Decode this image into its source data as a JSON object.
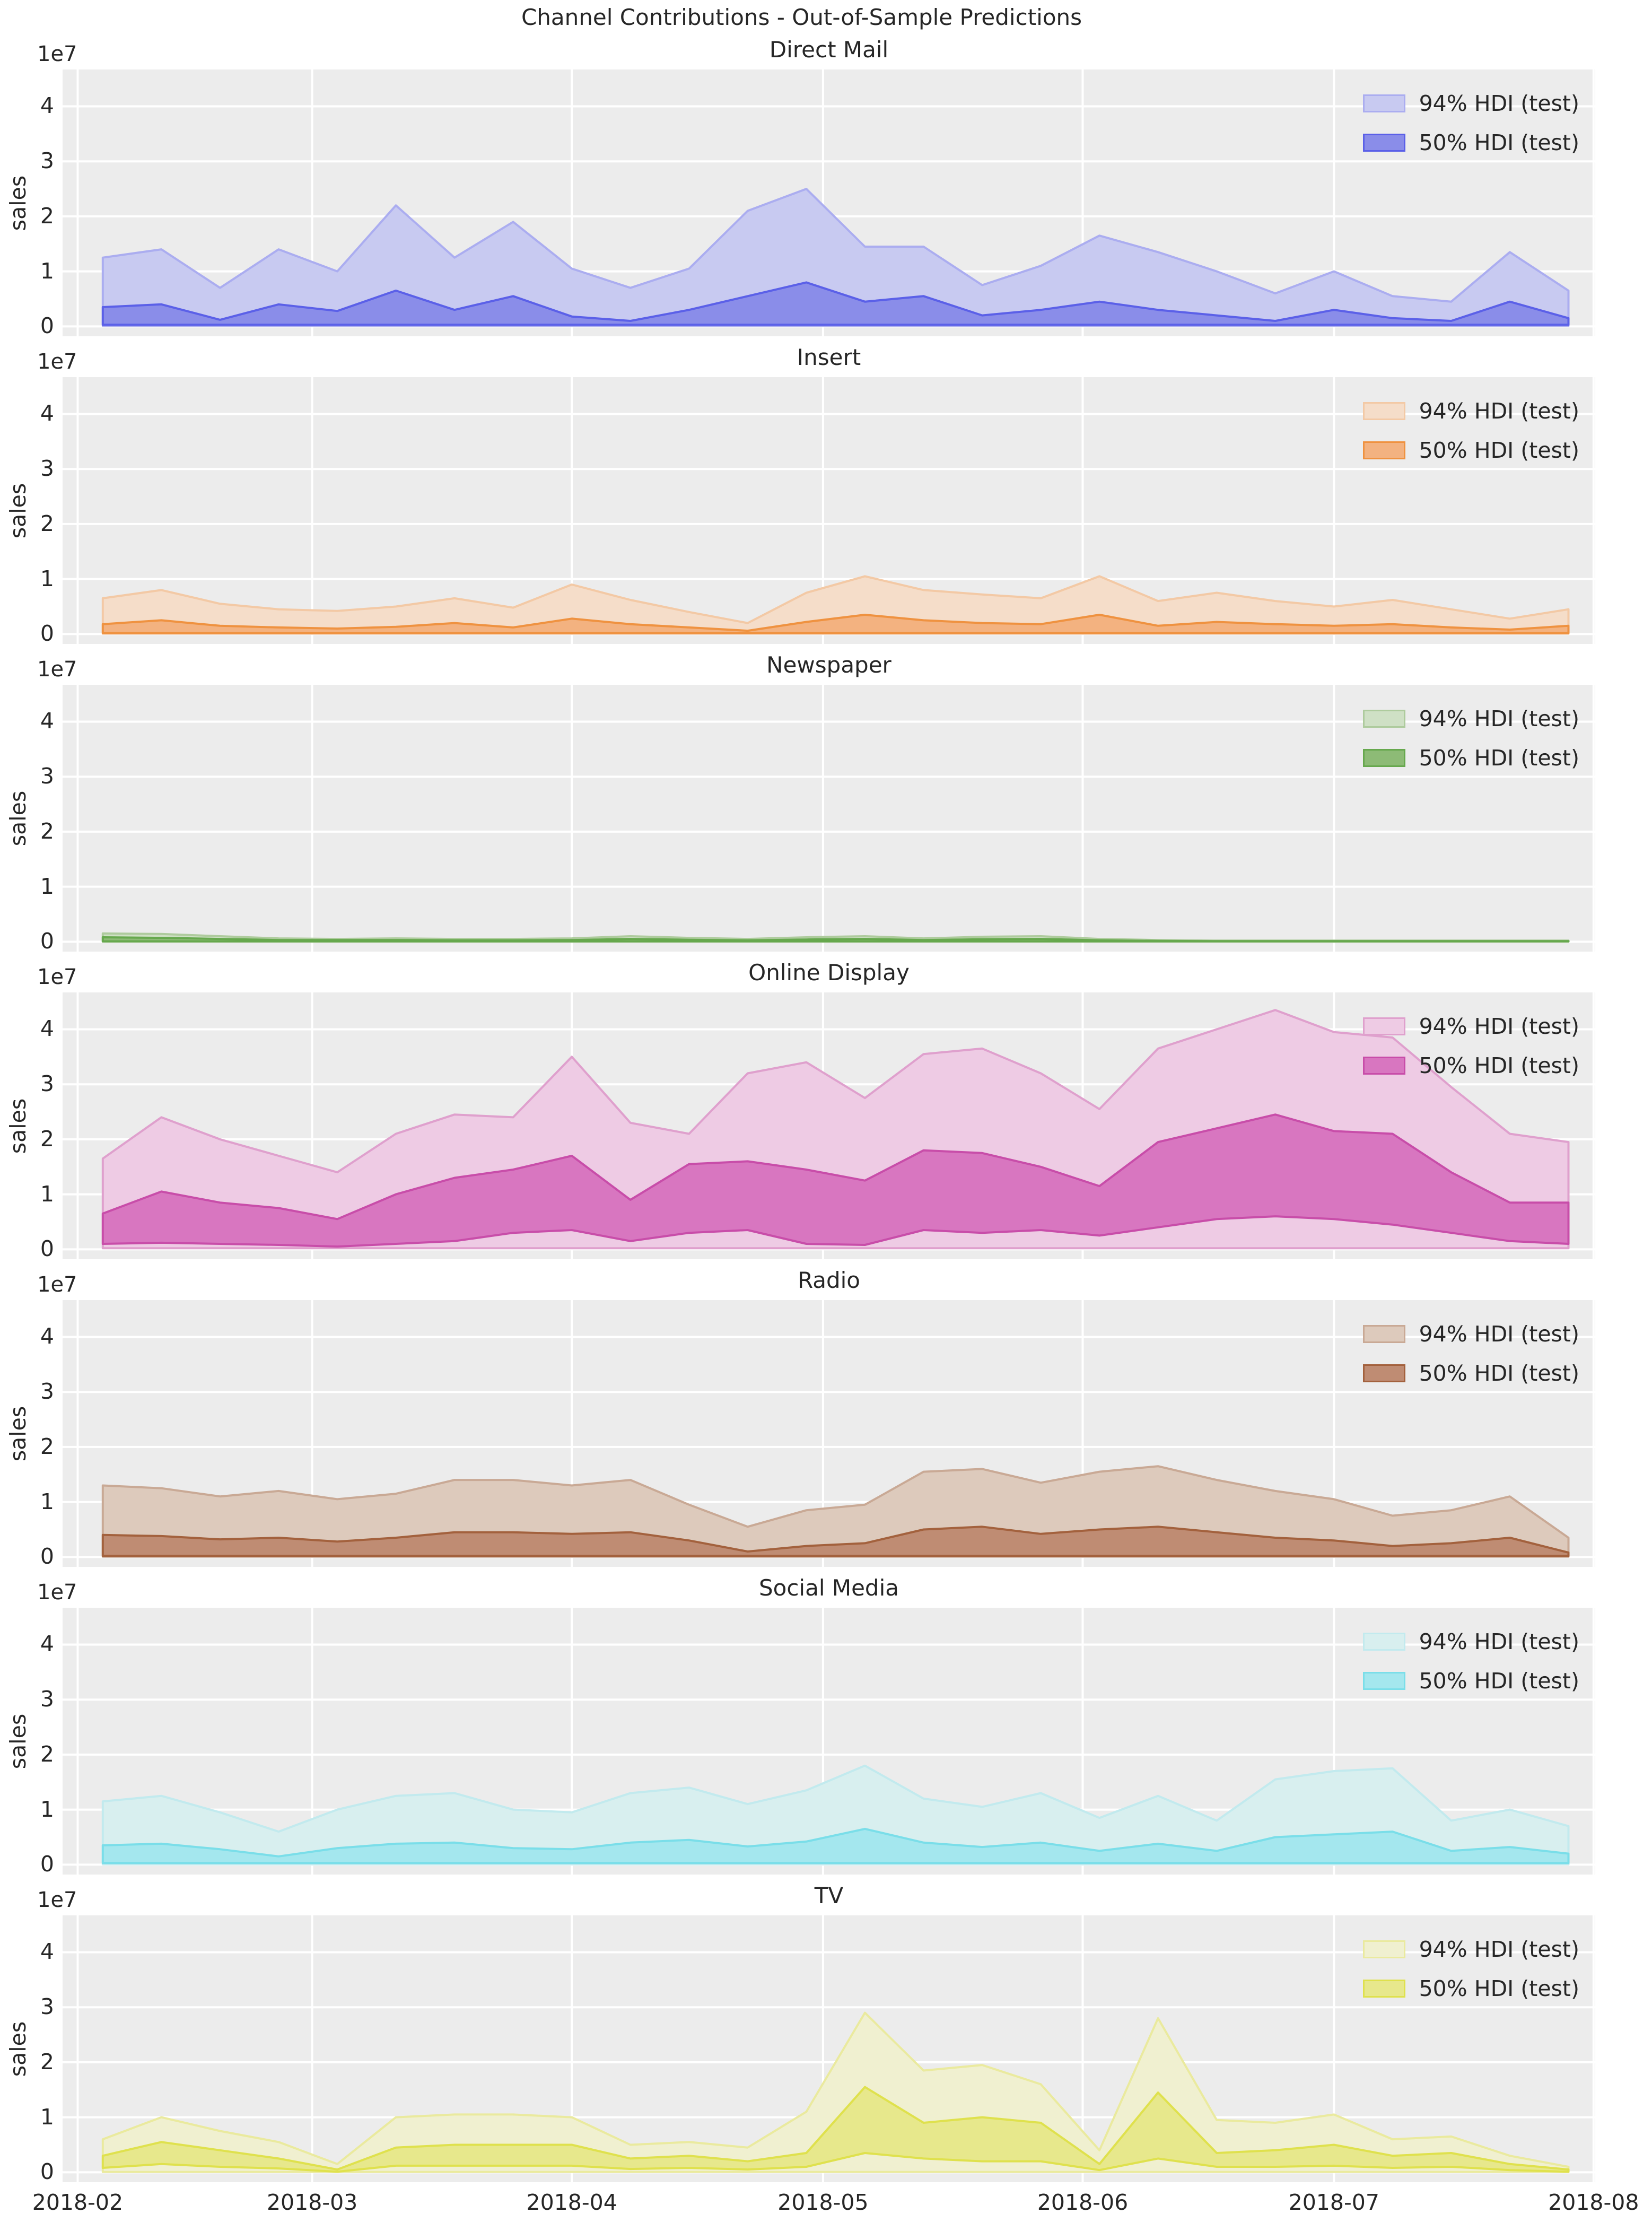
{
  "figure": {
    "suptitle": "Channel Contributions - Out-of-Sample Predictions",
    "ylabel": "sales",
    "y_offset_label": "1e7",
    "background": "#ffffff",
    "axes_background": "#ececec",
    "gridline_color": "#ffffff",
    "text_color": "#262626"
  },
  "legend": {
    "labels": [
      "94% HDI (test)",
      "50% HDI (test)"
    ]
  },
  "x_axis": {
    "ticks": [
      "2018-02",
      "2018-03",
      "2018-04",
      "2018-05",
      "2018-06",
      "2018-07",
      "2018-08"
    ]
  },
  "y_axis": {
    "ticks": [
      "0",
      "1",
      "2",
      "3",
      "4"
    ],
    "scale_note": "1e7"
  },
  "chart_data": [
    {
      "type": "area",
      "title": "Direct Mail",
      "colors": {
        "fill94": "#c8caf1",
        "line94": "#abadf0",
        "fill50": "#8a8de9",
        "line50": "#5b60e8"
      },
      "x": [
        "2018-02-04",
        "2018-02-11",
        "2018-02-18",
        "2018-02-25",
        "2018-03-04",
        "2018-03-11",
        "2018-03-18",
        "2018-03-25",
        "2018-04-01",
        "2018-04-08",
        "2018-04-15",
        "2018-04-22",
        "2018-04-29",
        "2018-05-06",
        "2018-05-13",
        "2018-05-20",
        "2018-05-27",
        "2018-06-03",
        "2018-06-10",
        "2018-06-17",
        "2018-06-24",
        "2018-07-01",
        "2018-07-08",
        "2018-07-15",
        "2018-07-22",
        "2018-07-29"
      ],
      "unit": "1e7",
      "hdi94_upper": [
        1.25,
        1.4,
        0.7,
        1.4,
        1.0,
        2.2,
        1.25,
        1.9,
        1.05,
        0.7,
        1.05,
        2.1,
        2.5,
        1.45,
        1.45,
        0.75,
        1.1,
        1.65,
        1.35,
        1.0,
        0.6,
        1.0,
        0.55,
        0.45,
        1.35,
        0.65
      ],
      "hdi94_lower": [
        0.01,
        0.01,
        0.01,
        0.01,
        0.01,
        0.01,
        0.01,
        0.01,
        0.01,
        0.01,
        0.01,
        0.01,
        0.01,
        0.01,
        0.01,
        0.01,
        0.01,
        0.01,
        0.01,
        0.01,
        0.01,
        0.01,
        0.01,
        0.01,
        0.01,
        0.01
      ],
      "hdi50_upper": [
        0.35,
        0.4,
        0.12,
        0.4,
        0.28,
        0.65,
        0.3,
        0.55,
        0.18,
        0.1,
        0.3,
        0.55,
        0.8,
        0.45,
        0.55,
        0.2,
        0.3,
        0.45,
        0.3,
        0.2,
        0.1,
        0.3,
        0.15,
        0.1,
        0.45,
        0.15
      ],
      "hdi50_lower": [
        0.03,
        0.03,
        0.03,
        0.03,
        0.03,
        0.03,
        0.03,
        0.03,
        0.03,
        0.03,
        0.03,
        0.03,
        0.03,
        0.03,
        0.03,
        0.03,
        0.03,
        0.03,
        0.03,
        0.03,
        0.03,
        0.03,
        0.03,
        0.03,
        0.03,
        0.03
      ]
    },
    {
      "type": "area",
      "title": "Insert",
      "colors": {
        "fill94": "#f5ddc9",
        "line94": "#f3c9a5",
        "fill50": "#f3b280",
        "line50": "#ef9240"
      },
      "x": [
        "2018-02-04",
        "2018-02-11",
        "2018-02-18",
        "2018-02-25",
        "2018-03-04",
        "2018-03-11",
        "2018-03-18",
        "2018-03-25",
        "2018-04-01",
        "2018-04-08",
        "2018-04-15",
        "2018-04-22",
        "2018-04-29",
        "2018-05-06",
        "2018-05-13",
        "2018-05-20",
        "2018-05-27",
        "2018-06-03",
        "2018-06-10",
        "2018-06-17",
        "2018-06-24",
        "2018-07-01",
        "2018-07-08",
        "2018-07-15",
        "2018-07-22",
        "2018-07-29"
      ],
      "unit": "1e7",
      "hdi94_upper": [
        0.65,
        0.8,
        0.55,
        0.45,
        0.42,
        0.5,
        0.65,
        0.48,
        0.9,
        0.62,
        0.4,
        0.2,
        0.75,
        1.05,
        0.8,
        0.72,
        0.65,
        1.05,
        0.6,
        0.75,
        0.6,
        0.5,
        0.62,
        0.45,
        0.28,
        0.45
      ],
      "hdi94_lower": [
        0.005,
        0.005,
        0.005,
        0.005,
        0.005,
        0.005,
        0.005,
        0.005,
        0.005,
        0.005,
        0.005,
        0.005,
        0.005,
        0.005,
        0.005,
        0.005,
        0.005,
        0.005,
        0.005,
        0.005,
        0.005,
        0.005,
        0.005,
        0.005,
        0.005,
        0.005
      ],
      "hdi50_upper": [
        0.18,
        0.25,
        0.15,
        0.12,
        0.1,
        0.13,
        0.2,
        0.12,
        0.28,
        0.18,
        0.12,
        0.06,
        0.22,
        0.35,
        0.25,
        0.2,
        0.18,
        0.35,
        0.15,
        0.22,
        0.18,
        0.15,
        0.18,
        0.12,
        0.08,
        0.15
      ],
      "hdi50_lower": [
        0.02,
        0.02,
        0.02,
        0.02,
        0.02,
        0.02,
        0.02,
        0.02,
        0.02,
        0.02,
        0.02,
        0.02,
        0.02,
        0.02,
        0.02,
        0.02,
        0.02,
        0.02,
        0.02,
        0.02,
        0.02,
        0.02,
        0.02,
        0.02,
        0.02,
        0.02
      ]
    },
    {
      "type": "area",
      "title": "Newspaper",
      "colors": {
        "fill94": "#cfe0c5",
        "line94": "#aecb9d",
        "fill50": "#8dbb76",
        "line50": "#66a84d"
      },
      "x": [
        "2018-02-04",
        "2018-02-11",
        "2018-02-18",
        "2018-02-25",
        "2018-03-04",
        "2018-03-11",
        "2018-03-18",
        "2018-03-25",
        "2018-04-01",
        "2018-04-08",
        "2018-04-15",
        "2018-04-22",
        "2018-04-29",
        "2018-05-06",
        "2018-05-13",
        "2018-05-20",
        "2018-05-27",
        "2018-06-03",
        "2018-06-10",
        "2018-06-17",
        "2018-06-24",
        "2018-07-01",
        "2018-07-08",
        "2018-07-15",
        "2018-07-22",
        "2018-07-29"
      ],
      "unit": "1e7",
      "hdi94_upper": [
        0.15,
        0.14,
        0.1,
        0.06,
        0.05,
        0.06,
        0.05,
        0.05,
        0.06,
        0.1,
        0.07,
        0.05,
        0.08,
        0.1,
        0.06,
        0.09,
        0.1,
        0.05,
        0.03,
        0.02,
        0.02,
        0.02,
        0.02,
        0.02,
        0.02,
        0.02
      ],
      "hdi94_lower": [
        0.002,
        0.002,
        0.002,
        0.002,
        0.002,
        0.002,
        0.002,
        0.002,
        0.002,
        0.002,
        0.002,
        0.002,
        0.002,
        0.002,
        0.002,
        0.002,
        0.002,
        0.002,
        0.002,
        0.002,
        0.002,
        0.002,
        0.002,
        0.002,
        0.002,
        0.002
      ],
      "hdi50_upper": [
        0.08,
        0.07,
        0.05,
        0.03,
        0.03,
        0.03,
        0.025,
        0.025,
        0.03,
        0.05,
        0.035,
        0.025,
        0.04,
        0.05,
        0.03,
        0.045,
        0.05,
        0.025,
        0.015,
        0.01,
        0.01,
        0.01,
        0.01,
        0.01,
        0.01,
        0.01
      ],
      "hdi50_lower": [
        0.005,
        0.005,
        0.005,
        0.005,
        0.005,
        0.005,
        0.005,
        0.005,
        0.005,
        0.005,
        0.005,
        0.005,
        0.005,
        0.005,
        0.005,
        0.005,
        0.005,
        0.005,
        0.005,
        0.005,
        0.005,
        0.005,
        0.005,
        0.005,
        0.005,
        0.005
      ]
    },
    {
      "type": "area",
      "title": "Online Display",
      "colors": {
        "fill94": "#eecbe4",
        "line94": "#dfa0cd",
        "fill50": "#d876c0",
        "line50": "#c84da9"
      },
      "x": [
        "2018-02-04",
        "2018-02-11",
        "2018-02-18",
        "2018-02-25",
        "2018-03-04",
        "2018-03-11",
        "2018-03-18",
        "2018-03-25",
        "2018-04-01",
        "2018-04-08",
        "2018-04-15",
        "2018-04-22",
        "2018-04-29",
        "2018-05-06",
        "2018-05-13",
        "2018-05-20",
        "2018-05-27",
        "2018-06-03",
        "2018-06-10",
        "2018-06-17",
        "2018-06-24",
        "2018-07-01",
        "2018-07-08",
        "2018-07-15",
        "2018-07-22",
        "2018-07-29"
      ],
      "unit": "1e7",
      "hdi94_upper": [
        1.65,
        2.4,
        2.0,
        1.7,
        1.4,
        2.1,
        2.45,
        2.4,
        3.5,
        2.3,
        2.1,
        3.2,
        3.4,
        2.75,
        3.55,
        3.65,
        3.2,
        2.55,
        3.65,
        4.0,
        4.35,
        3.95,
        3.85,
        2.95,
        2.1,
        1.95
      ],
      "hdi94_lower": [
        0.02,
        0.02,
        0.02,
        0.02,
        0.02,
        0.02,
        0.02,
        0.02,
        0.02,
        0.02,
        0.02,
        0.02,
        0.02,
        0.02,
        0.02,
        0.02,
        0.02,
        0.02,
        0.02,
        0.02,
        0.02,
        0.02,
        0.02,
        0.02,
        0.02,
        0.02
      ],
      "hdi50_upper": [
        0.65,
        1.05,
        0.85,
        0.75,
        0.55,
        1.0,
        1.3,
        1.45,
        1.7,
        0.9,
        1.55,
        1.6,
        1.45,
        1.25,
        1.8,
        1.75,
        1.5,
        1.15,
        1.95,
        2.2,
        2.45,
        2.15,
        2.1,
        1.4,
        0.85,
        0.85
      ],
      "hdi50_lower": [
        0.1,
        0.12,
        0.1,
        0.08,
        0.05,
        0.1,
        0.15,
        0.3,
        0.35,
        0.15,
        0.3,
        0.35,
        0.1,
        0.08,
        0.35,
        0.3,
        0.35,
        0.25,
        0.4,
        0.55,
        0.6,
        0.55,
        0.45,
        0.3,
        0.15,
        0.1
      ]
    },
    {
      "type": "area",
      "title": "Radio",
      "colors": {
        "fill94": "#ddcabc",
        "line94": "#c9a995",
        "fill50": "#bf8c73",
        "line50": "#a3613d"
      },
      "x": [
        "2018-02-04",
        "2018-02-11",
        "2018-02-18",
        "2018-02-25",
        "2018-03-04",
        "2018-03-11",
        "2018-03-18",
        "2018-03-25",
        "2018-04-01",
        "2018-04-08",
        "2018-04-15",
        "2018-04-22",
        "2018-04-29",
        "2018-05-06",
        "2018-05-13",
        "2018-05-20",
        "2018-05-27",
        "2018-06-03",
        "2018-06-10",
        "2018-06-17",
        "2018-06-24",
        "2018-07-01",
        "2018-07-08",
        "2018-07-15",
        "2018-07-22",
        "2018-07-29"
      ],
      "unit": "1e7",
      "hdi94_upper": [
        1.3,
        1.25,
        1.1,
        1.2,
        1.05,
        1.15,
        1.4,
        1.4,
        1.3,
        1.4,
        0.95,
        0.55,
        0.85,
        0.95,
        1.55,
        1.6,
        1.35,
        1.55,
        1.65,
        1.4,
        1.2,
        1.05,
        0.75,
        0.85,
        1.1,
        0.35
      ],
      "hdi94_lower": [
        0.005,
        0.005,
        0.005,
        0.005,
        0.005,
        0.005,
        0.005,
        0.005,
        0.005,
        0.005,
        0.005,
        0.005,
        0.005,
        0.005,
        0.005,
        0.005,
        0.005,
        0.005,
        0.005,
        0.005,
        0.005,
        0.005,
        0.005,
        0.005,
        0.005,
        0.005
      ],
      "hdi50_upper": [
        0.4,
        0.38,
        0.32,
        0.35,
        0.28,
        0.35,
        0.45,
        0.45,
        0.42,
        0.45,
        0.3,
        0.1,
        0.2,
        0.25,
        0.5,
        0.55,
        0.42,
        0.5,
        0.55,
        0.45,
        0.35,
        0.3,
        0.2,
        0.25,
        0.35,
        0.08
      ],
      "hdi50_lower": [
        0.02,
        0.02,
        0.02,
        0.02,
        0.02,
        0.02,
        0.02,
        0.02,
        0.02,
        0.02,
        0.02,
        0.02,
        0.02,
        0.02,
        0.02,
        0.02,
        0.02,
        0.02,
        0.02,
        0.02,
        0.02,
        0.02,
        0.02,
        0.02,
        0.02,
        0.02
      ]
    },
    {
      "type": "area",
      "title": "Social Media",
      "colors": {
        "fill94": "#d8efef",
        "line94": "#c2eaee",
        "fill50": "#a4e7ee",
        "line50": "#7adee9"
      },
      "x": [
        "2018-02-04",
        "2018-02-11",
        "2018-02-18",
        "2018-02-25",
        "2018-03-04",
        "2018-03-11",
        "2018-03-18",
        "2018-03-25",
        "2018-04-01",
        "2018-04-08",
        "2018-04-15",
        "2018-04-22",
        "2018-04-29",
        "2018-05-06",
        "2018-05-13",
        "2018-05-20",
        "2018-05-27",
        "2018-06-03",
        "2018-06-10",
        "2018-06-17",
        "2018-06-24",
        "2018-07-01",
        "2018-07-08",
        "2018-07-15",
        "2018-07-22",
        "2018-07-29"
      ],
      "unit": "1e7",
      "hdi94_upper": [
        1.15,
        1.25,
        0.95,
        0.6,
        1.0,
        1.25,
        1.3,
        1.0,
        0.95,
        1.3,
        1.4,
        1.1,
        1.35,
        1.8,
        1.2,
        1.05,
        1.3,
        0.85,
        1.25,
        0.8,
        1.55,
        1.7,
        1.75,
        0.8,
        1.0,
        0.7
      ],
      "hdi94_lower": [
        0.005,
        0.005,
        0.005,
        0.005,
        0.005,
        0.005,
        0.005,
        0.005,
        0.005,
        0.005,
        0.005,
        0.005,
        0.005,
        0.005,
        0.005,
        0.005,
        0.005,
        0.005,
        0.005,
        0.005,
        0.005,
        0.005,
        0.005,
        0.005,
        0.005,
        0.005
      ],
      "hdi50_upper": [
        0.35,
        0.38,
        0.28,
        0.15,
        0.3,
        0.38,
        0.4,
        0.3,
        0.28,
        0.4,
        0.45,
        0.33,
        0.42,
        0.65,
        0.4,
        0.32,
        0.4,
        0.25,
        0.38,
        0.25,
        0.5,
        0.55,
        0.6,
        0.25,
        0.32,
        0.2
      ],
      "hdi50_lower": [
        0.03,
        0.03,
        0.03,
        0.03,
        0.03,
        0.03,
        0.03,
        0.03,
        0.03,
        0.03,
        0.03,
        0.03,
        0.03,
        0.03,
        0.03,
        0.03,
        0.03,
        0.03,
        0.03,
        0.03,
        0.03,
        0.03,
        0.03,
        0.03,
        0.03,
        0.03
      ]
    },
    {
      "type": "area",
      "title": "TV",
      "colors": {
        "fill94": "#f0f0d0",
        "line94": "#eaea9e",
        "fill50": "#e7e88c",
        "line50": "#dfe14d"
      },
      "x": [
        "2018-02-04",
        "2018-02-11",
        "2018-02-18",
        "2018-02-25",
        "2018-03-04",
        "2018-03-11",
        "2018-03-18",
        "2018-03-25",
        "2018-04-01",
        "2018-04-08",
        "2018-04-15",
        "2018-04-22",
        "2018-04-29",
        "2018-05-06",
        "2018-05-13",
        "2018-05-20",
        "2018-05-27",
        "2018-06-03",
        "2018-06-10",
        "2018-06-17",
        "2018-06-24",
        "2018-07-01",
        "2018-07-08",
        "2018-07-15",
        "2018-07-22",
        "2018-07-29"
      ],
      "unit": "1e7",
      "hdi94_upper": [
        0.6,
        1.0,
        0.75,
        0.55,
        0.15,
        1.0,
        1.05,
        1.05,
        1.0,
        0.5,
        0.55,
        0.45,
        1.1,
        2.9,
        1.85,
        1.95,
        1.6,
        0.4,
        2.8,
        0.95,
        0.9,
        1.05,
        0.6,
        0.65,
        0.3,
        0.1
      ],
      "hdi94_lower": [
        0.005,
        0.005,
        0.005,
        0.005,
        0.005,
        0.005,
        0.005,
        0.005,
        0.005,
        0.005,
        0.005,
        0.005,
        0.005,
        0.005,
        0.005,
        0.005,
        0.005,
        0.005,
        0.005,
        0.005,
        0.005,
        0.005,
        0.005,
        0.005,
        0.005,
        0.005
      ],
      "hdi50_upper": [
        0.3,
        0.55,
        0.4,
        0.25,
        0.05,
        0.45,
        0.5,
        0.5,
        0.5,
        0.25,
        0.3,
        0.2,
        0.35,
        1.55,
        0.9,
        1.0,
        0.9,
        0.15,
        1.45,
        0.35,
        0.4,
        0.5,
        0.3,
        0.35,
        0.15,
        0.05
      ],
      "hdi50_lower": [
        0.08,
        0.15,
        0.1,
        0.07,
        0.01,
        0.12,
        0.12,
        0.12,
        0.12,
        0.06,
        0.08,
        0.05,
        0.1,
        0.35,
        0.25,
        0.2,
        0.2,
        0.04,
        0.25,
        0.1,
        0.1,
        0.12,
        0.08,
        0.1,
        0.04,
        0.01
      ]
    }
  ]
}
